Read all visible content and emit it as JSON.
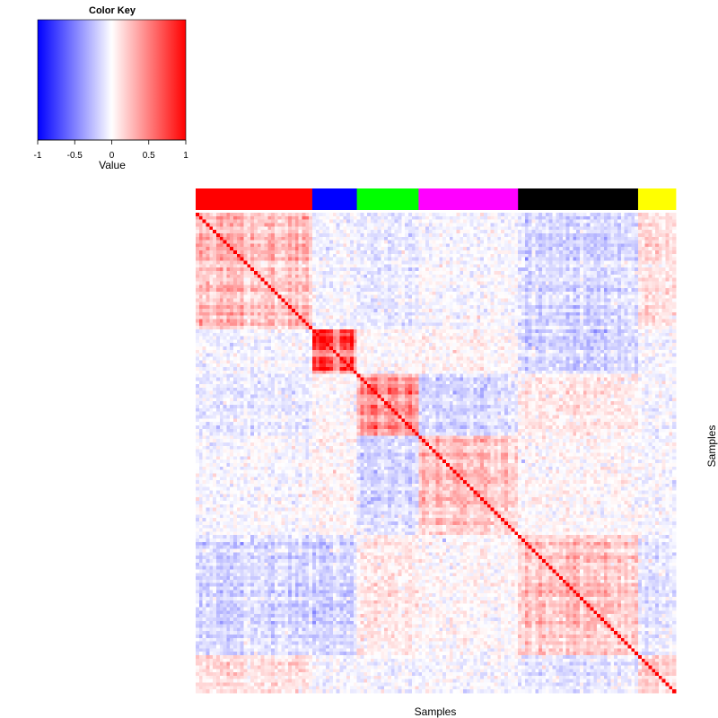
{
  "chart_data": {
    "type": "heatmap",
    "xlabel": "Samples",
    "ylabel": "Samples",
    "color_key": {
      "title": "Color Key",
      "label": "Value",
      "ticks": [
        "-1",
        "-0.5",
        "0",
        "0.5",
        "1"
      ],
      "range": [
        -1,
        1
      ],
      "low_color": "#0000ff",
      "mid_color": "#ffffff",
      "high_color": "#ff0000"
    },
    "n_samples": 140,
    "groups": [
      {
        "color": "#ff0000",
        "size": 34,
        "within_corr": 0.22
      },
      {
        "color": "#0000ff",
        "size": 13,
        "within_corr": 0.55
      },
      {
        "color": "#00ff00",
        "size": 18,
        "within_corr": 0.42
      },
      {
        "color": "#ff00ff",
        "size": 29,
        "within_corr": 0.25
      },
      {
        "color": "#000000",
        "size": 35,
        "within_corr": 0.22
      },
      {
        "color": "#ffff00",
        "size": 11,
        "within_corr": 0.18
      }
    ],
    "group_correlation_matrix": [
      [
        0.22,
        -0.03,
        -0.08,
        -0.02,
        -0.14,
        0.12
      ],
      [
        -0.03,
        0.55,
        0.02,
        0.03,
        -0.15,
        -0.03
      ],
      [
        -0.08,
        0.02,
        0.42,
        -0.15,
        0.08,
        -0.04
      ],
      [
        -0.02,
        0.03,
        -0.15,
        0.25,
        0.02,
        -0.03
      ],
      [
        -0.14,
        -0.15,
        0.08,
        0.02,
        0.22,
        -0.1
      ],
      [
        0.12,
        -0.03,
        -0.04,
        -0.03,
        -0.1,
        0.18
      ]
    ],
    "diagonal_value": 1
  }
}
